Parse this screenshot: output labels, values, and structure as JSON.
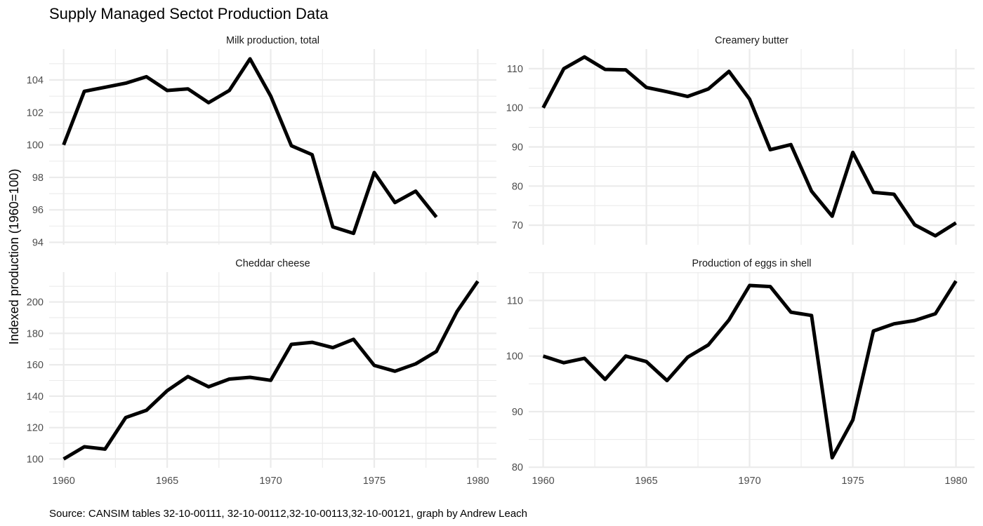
{
  "title": "Supply Managed Sectot Production Data",
  "ylabel": "Indexed production (1960=100)",
  "caption": "Source: CANSIM tables 32-10-00111, 32-10-00112,32-10-00113,32-10-00121, graph by Andrew Leach",
  "chart_data": [
    {
      "type": "line",
      "title": "Milk production, total",
      "x": [
        1960,
        1961,
        1962,
        1963,
        1964,
        1965,
        1966,
        1967,
        1968,
        1969,
        1970,
        1971,
        1972,
        1973,
        1974,
        1975,
        1976,
        1977,
        1978
      ],
      "values": [
        100.0,
        103.3,
        103.55,
        103.8,
        104.2,
        103.35,
        103.45,
        102.6,
        103.35,
        105.3,
        103.0,
        99.95,
        99.4,
        94.95,
        94.55,
        98.3,
        96.45,
        97.15,
        95.55
      ],
      "xlim": [
        1959.3,
        1980.9
      ],
      "ylim": [
        93.85,
        105.9
      ],
      "xticks": [
        "1960",
        "1965",
        "1970",
        "1975",
        "1980"
      ],
      "yticks": [
        "94",
        "96",
        "98",
        "100",
        "102",
        "104"
      ],
      "color": "#000000",
      "grid": true
    },
    {
      "type": "line",
      "title": "Creamery butter",
      "x": [
        1960,
        1961,
        1962,
        1963,
        1964,
        1965,
        1966,
        1967,
        1968,
        1969,
        1970,
        1971,
        1972,
        1973,
        1974,
        1975,
        1976,
        1977,
        1978,
        1979,
        1980
      ],
      "values": [
        100.0,
        110.0,
        113.0,
        109.8,
        109.7,
        105.2,
        104.1,
        102.9,
        104.8,
        109.3,
        102.2,
        89.3,
        90.6,
        78.7,
        72.3,
        88.6,
        78.4,
        77.9,
        70.1,
        67.3,
        70.6
      ],
      "xlim": [
        1959.3,
        1980.9
      ],
      "ylim": [
        65.0,
        115.0
      ],
      "xticks": [
        "1960",
        "1965",
        "1970",
        "1975",
        "1980"
      ],
      "yticks": [
        "70",
        "80",
        "90",
        "100",
        "110"
      ],
      "color": "#000000",
      "grid": true
    },
    {
      "type": "line",
      "title": "Cheddar cheese",
      "x": [
        1960,
        1961,
        1962,
        1963,
        1964,
        1965,
        1966,
        1967,
        1968,
        1969,
        1970,
        1971,
        1972,
        1973,
        1974,
        1975,
        1976,
        1977,
        1978,
        1979,
        1980
      ],
      "values": [
        100.0,
        107.8,
        106.3,
        126.4,
        131.0,
        143.5,
        152.5,
        146.0,
        150.9,
        152.0,
        150.1,
        173.0,
        174.3,
        170.9,
        176.2,
        159.6,
        155.9,
        160.6,
        168.5,
        194.0,
        213.2
      ],
      "xlim": [
        1959.3,
        1980.9
      ],
      "ylim": [
        94.4,
        219.0
      ],
      "xticks": [
        "1960",
        "1965",
        "1970",
        "1975",
        "1980"
      ],
      "yticks": [
        "100",
        "120",
        "140",
        "160",
        "180",
        "200"
      ],
      "color": "#000000",
      "grid": true
    },
    {
      "type": "line",
      "title": "Production of eggs in shell",
      "x": [
        1960,
        1961,
        1962,
        1963,
        1964,
        1965,
        1966,
        1967,
        1968,
        1969,
        1970,
        1971,
        1972,
        1973,
        1974,
        1975,
        1976,
        1977,
        1978,
        1979,
        1980
      ],
      "values": [
        100.0,
        98.8,
        99.6,
        95.8,
        100.0,
        99.0,
        95.6,
        99.8,
        102.0,
        106.5,
        112.7,
        112.5,
        107.9,
        107.3,
        81.7,
        88.5,
        104.5,
        105.8,
        106.4,
        107.6,
        113.5
      ],
      "xlim": [
        1959.3,
        1980.9
      ],
      "ylim": [
        79.9,
        115.1
      ],
      "xticks": [
        "1960",
        "1965",
        "1970",
        "1975",
        "1980"
      ],
      "yticks": [
        "80",
        "90",
        "100",
        "110"
      ],
      "color": "#000000",
      "grid": true
    }
  ]
}
